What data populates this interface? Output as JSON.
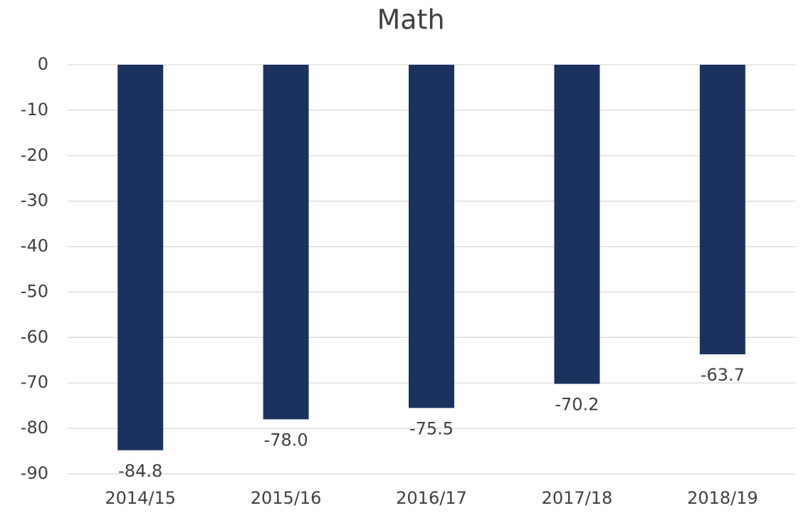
{
  "chart_data": {
    "type": "bar",
    "title": "Math",
    "categories": [
      "2014/15",
      "2015/16",
      "2016/17",
      "2017/18",
      "2018/19"
    ],
    "values": [
      -84.8,
      -78.0,
      -75.5,
      -70.2,
      -63.7
    ],
    "value_labels": [
      "-84.8",
      "-78.0",
      "-75.5",
      "-70.2",
      "-63.7"
    ],
    "color": "#1b325f",
    "ylim": [
      -90,
      0
    ],
    "yticks": [
      0,
      -10,
      -20,
      -30,
      -40,
      -50,
      -60,
      -70,
      -80,
      -90
    ],
    "grid": true
  }
}
